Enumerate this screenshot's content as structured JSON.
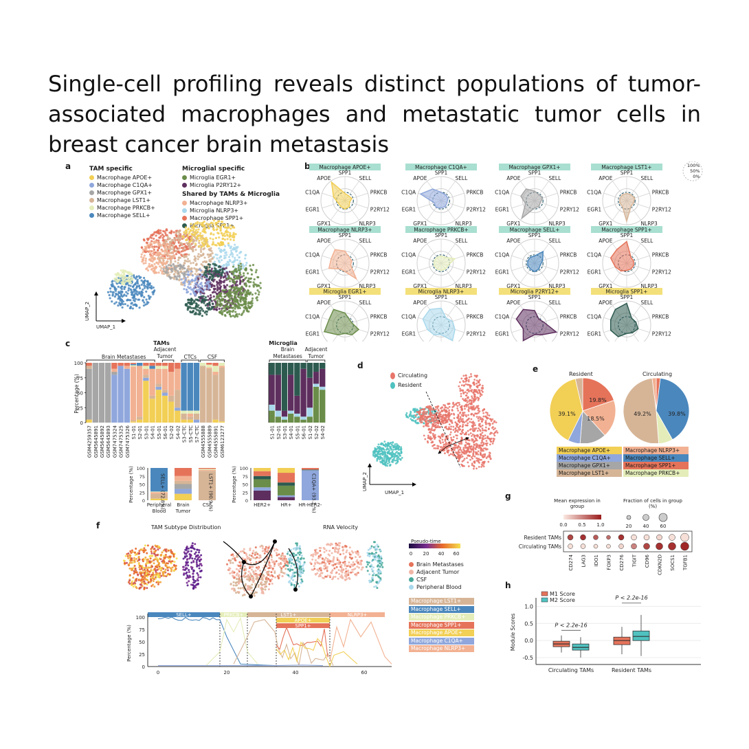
{
  "title": "Single-cell profiling reveals distinct populations of tumor-associated macrophages and metastatic tumor cells in breast cancer brain metastasis",
  "colors": {
    "apoe": "#f2cf55",
    "c1qa": "#8fa7dc",
    "gpx1": "#a6a6a6",
    "lst1": "#d6b597",
    "prkcb": "#e4edb9",
    "sell": "#4a87bd",
    "egr1": "#6b8d4a",
    "p2ry12": "#5e2f5e",
    "nlrp3": "#f2b192",
    "nlrp3mg": "#a9d8ec",
    "spp1": "#e5735a",
    "spp1mg": "#2d5a4f",
    "circulating": "#e8766b",
    "resident": "#4fc2c0"
  },
  "panel_a": {
    "label": "a",
    "tam_header": "TAM specific",
    "tam_items": [
      "Macrophage APOE+",
      "Macrophage C1QA+",
      "Macrophage GPX1+",
      "Macrophage LST1+",
      "Macrophage PRKCB+",
      "Macrophage SELL+"
    ],
    "mg_header": "Microglial specific",
    "mg_items": [
      "Microglia EGR1+",
      "Microglia P2RY12+"
    ],
    "shared_header": "Shared by TAMs & Microglia",
    "shared_items": [
      "Macrophage NLRP3+",
      "Microglia NLRP3+",
      "Macrophage SPP1+",
      "Microglia SPP1+"
    ],
    "x_axis": "UMAP_1",
    "y_axis": "UMAP_2"
  },
  "panel_b": {
    "label": "b",
    "axes": [
      "SPP1",
      "SELL",
      "PRKCB",
      "P2RY12",
      "NLRP3",
      "LST1",
      "GPX1",
      "EGR1",
      "C1QA",
      "APOE"
    ],
    "scale": [
      "100%",
      "50%",
      "0%"
    ],
    "radars": [
      {
        "title": "Macrophage APOE+",
        "kind": "mac",
        "color": "#f2cf55",
        "values": [
          0.3,
          0.25,
          0.3,
          0.2,
          0.3,
          0.35,
          0.3,
          0.3,
          0.5,
          0.95
        ]
      },
      {
        "title": "Macrophage C1QA+",
        "kind": "mac",
        "color": "#8fa7dc",
        "values": [
          0.35,
          0.3,
          0.3,
          0.25,
          0.3,
          0.3,
          0.35,
          0.3,
          0.9,
          0.6
        ]
      },
      {
        "title": "Macrophage GPX1+",
        "kind": "mac",
        "color": "#a6a6a6",
        "values": [
          0.4,
          0.3,
          0.35,
          0.25,
          0.3,
          0.3,
          0.9,
          0.4,
          0.6,
          0.6
        ]
      },
      {
        "title": "Macrophage LST1+",
        "kind": "mac",
        "color": "#d6b597",
        "values": [
          0.3,
          0.3,
          0.35,
          0.3,
          0.3,
          0.85,
          0.3,
          0.3,
          0.3,
          0.3
        ]
      },
      {
        "title": "Macrophage NLRP3+",
        "kind": "mac",
        "color": "#f2b192",
        "values": [
          0.5,
          0.3,
          0.3,
          0.25,
          0.8,
          0.35,
          0.3,
          0.7,
          0.6,
          0.7
        ]
      },
      {
        "title": "Macrophage PRKCB+",
        "kind": "mac",
        "color": "#e4edb9",
        "values": [
          0.3,
          0.3,
          0.6,
          0.3,
          0.3,
          0.3,
          0.3,
          0.3,
          0.3,
          0.3
        ]
      },
      {
        "title": "Macrophage SELL+",
        "kind": "mac",
        "color": "#4a87bd",
        "values": [
          0.3,
          0.6,
          0.35,
          0.25,
          0.3,
          0.35,
          0.3,
          0.3,
          0.3,
          0.3
        ]
      },
      {
        "title": "Macrophage SPP1+",
        "kind": "mac",
        "color": "#e5735a",
        "values": [
          0.9,
          0.3,
          0.3,
          0.3,
          0.3,
          0.3,
          0.4,
          0.5,
          0.7,
          0.7
        ]
      },
      {
        "title": "Microglia EGR1+",
        "kind": "mg",
        "color": "#6b8d4a",
        "values": [
          0.5,
          0.3,
          0.3,
          0.6,
          0.5,
          0.35,
          0.5,
          0.9,
          0.7,
          0.8
        ]
      },
      {
        "title": "Microglia NLRP3+",
        "kind": "mg",
        "color": "#a9d8ec",
        "values": [
          0.7,
          0.35,
          0.5,
          0.6,
          0.8,
          0.4,
          0.5,
          0.6,
          0.8,
          0.8
        ]
      },
      {
        "title": "Microglia P2RY12+",
        "kind": "mg",
        "color": "#5e2f5e",
        "values": [
          0.6,
          0.3,
          0.4,
          0.95,
          0.5,
          0.4,
          0.8,
          0.5,
          0.8,
          0.8
        ]
      },
      {
        "title": "Microglia SPP1+",
        "kind": "mg",
        "color": "#2d5a4f",
        "values": [
          0.9,
          0.35,
          0.4,
          0.5,
          0.4,
          0.35,
          0.6,
          0.7,
          0.7,
          0.8
        ]
      }
    ]
  },
  "panel_c": {
    "label": "c",
    "tam_title": "TAMs",
    "mg_title": "Microglia",
    "ylabel": "Percentage (%)",
    "yticks": [
      "100",
      "75",
      "50",
      "25",
      "0"
    ],
    "tam_groups": [
      "Brain Metastases",
      "Adjacent Tumor",
      "CTCs",
      "CSF"
    ],
    "mg_groups": [
      "Brain Metastases",
      "Adjacent Tumor"
    ],
    "tam_samples": [
      "GSM4259357",
      "GSM5645891",
      "GSM5645892",
      "GSM5645893",
      "GSM7475324",
      "GSM7475325",
      "GSM7475326",
      "S1-01",
      "S2-01",
      "S3-01",
      "S4-01",
      "S5-01",
      "S6-01",
      "S2-02",
      "S4-02",
      "S3-CTC",
      "S5-CTC",
      "S7-CTC",
      "GSM4555888",
      "GSM4555889",
      "GSM4555891",
      "GSM6123277"
    ],
    "mg_samples": [
      "S1-01",
      "S2-01",
      "S3-01",
      "S4-01",
      "S5-01",
      "S6-01",
      "S1-02",
      "S2-02",
      "S4-02"
    ],
    "bottom_left": {
      "categories": [
        "Peripheral Blood",
        "Brain Tumor",
        "CSF"
      ],
      "labels": [
        "SELL+ (72.8%)",
        "LST1+ (90.9 %)"
      ]
    },
    "bottom_right": {
      "categories": [
        "HER2+",
        "HR+",
        "HR-HER2-"
      ],
      "labels": [
        "C1QA+ (93.2 %)"
      ]
    },
    "small_yticks": [
      "100",
      "75",
      "50",
      "25",
      "0"
    ]
  },
  "panel_d": {
    "label": "d",
    "legend": [
      "Circulating",
      "Resident"
    ],
    "x_axis": "UMAP_1",
    "y_axis": "UMAP_2"
  },
  "panel_e": {
    "label": "e",
    "resident_title": "Resident",
    "circulating_title": "Circulating",
    "resident_labels": [
      "39.1%",
      "19.8%",
      "18.5%"
    ],
    "circulating_labels": [
      "49.2%",
      "39.8%"
    ],
    "legend": [
      "Macrophage APOE+",
      "Macrophage NLRP3+",
      "Macrophage C1QA+",
      "Macrophage SELL+",
      "Macrophage GPX1+",
      "Macrophage SPP1+",
      "Macrophage LST1+",
      "Macrophage PRKCB+"
    ]
  },
  "panel_f": {
    "label": "f",
    "left_title": "TAM Subtype Distribution",
    "right_title": "RNA Velocity",
    "pseudotime_title": "Pseudo-time",
    "pseudotime_ticks": [
      "0",
      "20",
      "40",
      "60"
    ],
    "tissue_legend": [
      "Brain Metastases",
      "Adjacent Tumor",
      "CSF",
      "Peripheral Blood"
    ],
    "subtype_legend": [
      "Macrophage LST1+",
      "Macrophage SELL+",
      "Macrophage PRKCB+",
      "Macrophage SPP1+",
      "Macrophage APOE+",
      "Macrophage C1QA+",
      "Macrophage NLRP3+"
    ],
    "bands": [
      "SELL+",
      "PRKCB+",
      "LST1+",
      "APOE+",
      "SPP1+",
      "NLRP3+"
    ],
    "ylabel": "Percentage (%)",
    "yticks": [
      "100",
      "75",
      "50",
      "25",
      "0"
    ],
    "xticks": [
      "0",
      "20",
      "40",
      "60"
    ]
  },
  "panel_g": {
    "label": "g",
    "mean_title": "Mean expression in group",
    "mean_ticks": [
      "0.0",
      "0.5",
      "1.0"
    ],
    "frac_title": "Fraction of cells in group (%)",
    "frac_ticks": [
      "20",
      "40",
      "60"
    ],
    "rows": [
      "Resident TAMs",
      "Circulating TAMs"
    ],
    "genes": [
      "CD274",
      "LAG3",
      "IDO1",
      "FOXP3",
      "CD276",
      "TIGIT",
      "CD96",
      "CDKN2D",
      "SOCS1",
      "TGFB1"
    ]
  },
  "panel_h": {
    "label": "h",
    "legend": [
      "M1 Score",
      "M2 Score"
    ],
    "ylabel": "Module Scores",
    "yticks": [
      "1.0",
      "0.5",
      "0.0",
      "-0.5"
    ],
    "groups": [
      "Circulating TAMs",
      "Resident TAMs"
    ],
    "pvalues": [
      "P < 2.2e-16",
      "P < 2.2e-16"
    ]
  }
}
